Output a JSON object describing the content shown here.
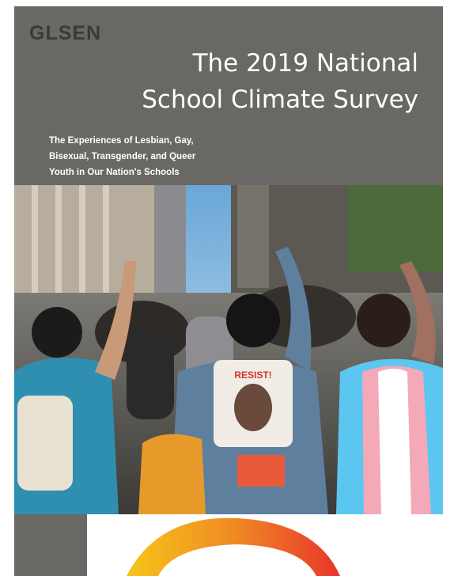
{
  "cover": {
    "logo": "GLSEN",
    "title": [
      "The 2019 National",
      "School Climate Survey"
    ],
    "subtitle": [
      "The Experiences of Lesbian, Gay,",
      "Bisexual, Transgender, and Queer",
      "Youth in Our Nation's Schools"
    ],
    "photo_text": "RESIST!"
  }
}
